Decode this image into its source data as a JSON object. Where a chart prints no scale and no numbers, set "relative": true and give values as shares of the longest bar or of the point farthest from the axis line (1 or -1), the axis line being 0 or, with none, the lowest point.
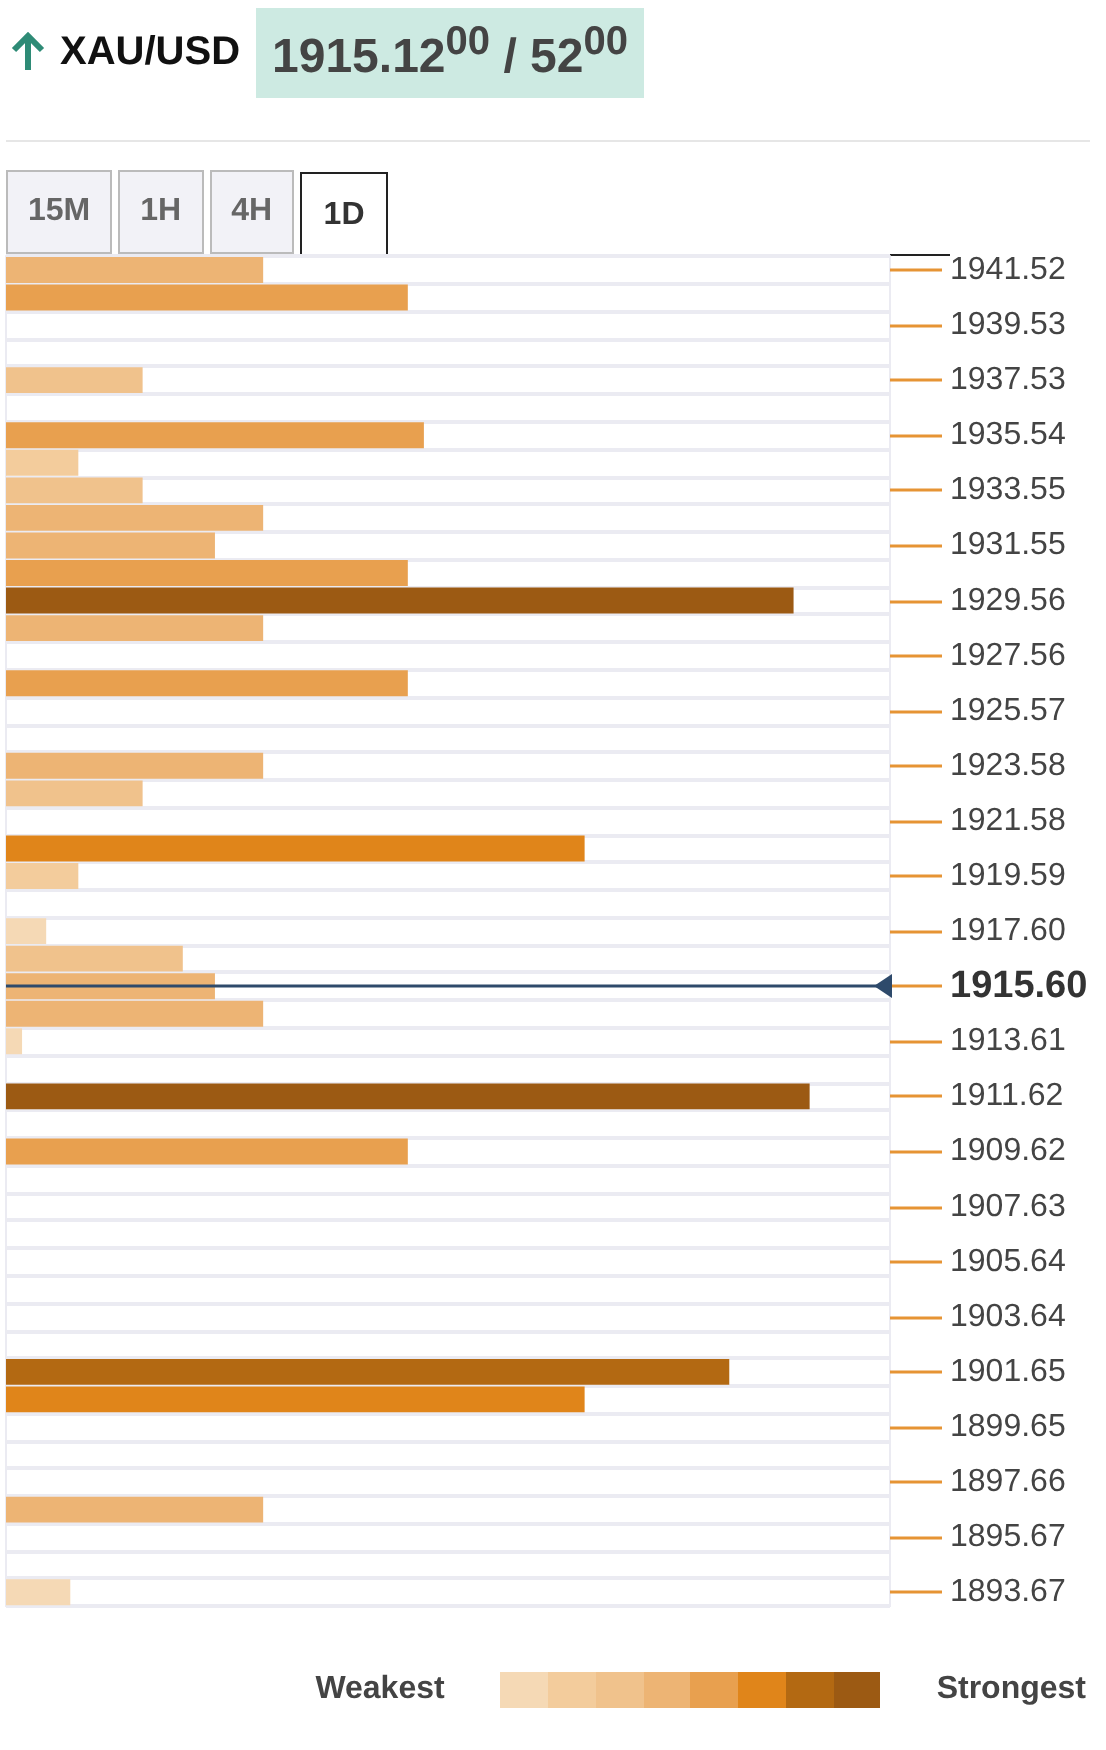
{
  "chart_data": {
    "type": "bar",
    "orientation": "horizontal",
    "relative": true,
    "title": "XAU/USD",
    "subtitle": "1915.12$^{00}$ / 52$^{00}$",
    "annotations": [
      "15M",
      "1H",
      "4H",
      "1D",
      "Weakest",
      "Strongest"
    ],
    "categories": [
      "1941.52",
      null,
      "1939.53",
      null,
      "1937.53",
      null,
      "1935.54",
      null,
      "1933.55",
      null,
      "1931.55",
      null,
      "1929.56",
      null,
      "1927.56",
      null,
      "1925.57",
      null,
      "1923.58",
      null,
      "1921.58",
      null,
      "1919.59",
      null,
      "1917.60",
      null,
      "1915.60",
      null,
      "1913.61",
      null,
      "1911.62",
      null,
      "1909.62",
      null,
      "1907.63",
      null,
      "1905.64",
      null,
      "1903.64",
      null,
      "1901.65",
      null,
      "1899.65",
      null,
      "1897.66",
      null,
      "1895.67",
      null,
      "1893.67"
    ],
    "values": [
      0.32,
      0.5,
      null,
      null,
      0.17,
      null,
      0.52,
      0.09,
      0.17,
      0.32,
      0.26,
      0.5,
      0.98,
      0.32,
      null,
      0.5,
      null,
      null,
      0.32,
      0.17,
      null,
      0.72,
      0.09,
      null,
      0.05,
      0.22,
      0.26,
      0.32,
      0.02,
      null,
      1,
      null,
      0.5,
      null,
      null,
      null,
      null,
      null,
      null,
      null,
      0.9,
      0.72,
      null,
      null,
      null,
      0.32,
      null,
      null,
      0.08
    ],
    "colors": [
      "#edb474",
      "#e8a04f",
      null,
      null,
      "#f0c28c",
      null,
      "#e8a04f",
      "#f3cc9c",
      "#f0c28c",
      "#edb474",
      "#edb474",
      "#e8a04f",
      "#9c5a13",
      "#edb474",
      null,
      "#e8a04f",
      null,
      null,
      "#edb474",
      "#f0c28c",
      null,
      "#e0851a",
      "#f3cc9c",
      null,
      "#f5d9b5",
      "#f0c28c",
      "#edb474",
      "#edb474",
      "#f5d9b5",
      null,
      "#9c5a13",
      null,
      "#e8a04f",
      null,
      null,
      null,
      null,
      null,
      null,
      null,
      "#b36912",
      "#e0851a",
      null,
      null,
      null,
      "#edb474",
      null,
      null,
      "#f5d9b5"
    ],
    "ref_lines": [
      {
        "axis": "y",
        "value": "1915.60",
        "color": "#2e4a6b"
      }
    ],
    "grid": true
  }
}
